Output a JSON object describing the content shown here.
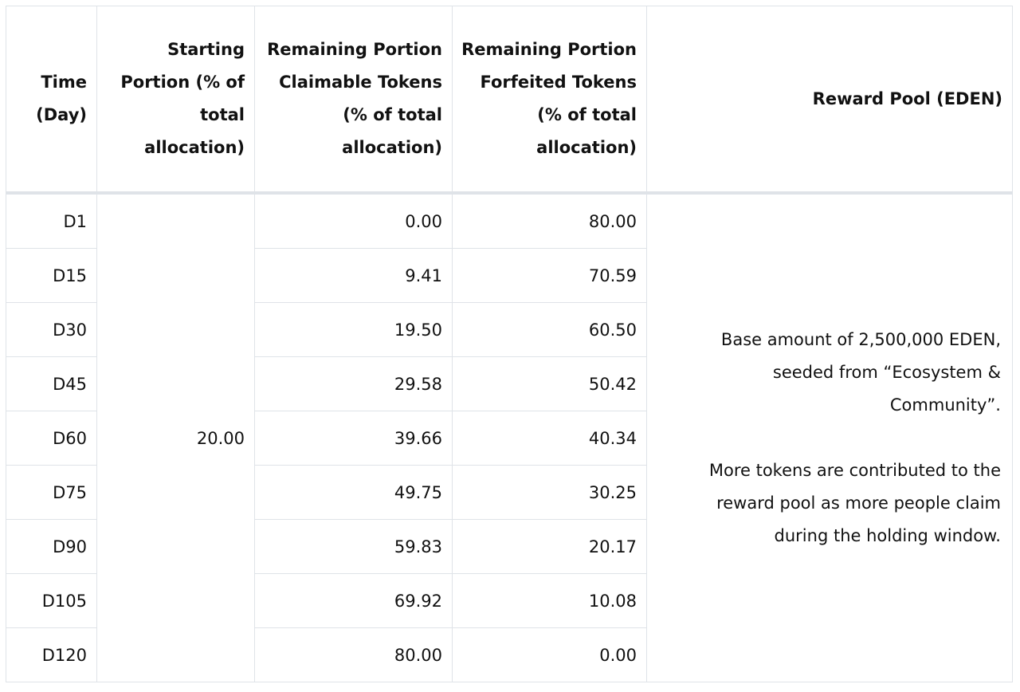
{
  "table": {
    "headers": [
      "Time (Day)",
      "Starting Portion (% of total allocation)",
      "Remaining Portion Claimable Tokens (% of total allocation)",
      "Remaining Portion Forfeited Tokens (% of total allocation)",
      "Reward Pool (EDEN)"
    ],
    "starting_portion": "20.00",
    "rows": [
      {
        "day": "D1",
        "claimable": "0.00",
        "forfeited": "80.00"
      },
      {
        "day": "D15",
        "claimable": "9.41",
        "forfeited": "70.59"
      },
      {
        "day": "D30",
        "claimable": "19.50",
        "forfeited": "60.50"
      },
      {
        "day": "D45",
        "claimable": "29.58",
        "forfeited": "50.42"
      },
      {
        "day": "D60",
        "claimable": "39.66",
        "forfeited": "40.34"
      },
      {
        "day": "D75",
        "claimable": "49.75",
        "forfeited": "30.25"
      },
      {
        "day": "D90",
        "claimable": "59.83",
        "forfeited": "20.17"
      },
      {
        "day": "D105",
        "claimable": "69.92",
        "forfeited": "10.08"
      },
      {
        "day": "D120",
        "claimable": "80.00",
        "forfeited": "0.00"
      }
    ],
    "reward_pool": {
      "paragraph_1": "Base amount of 2,500,000 EDEN, seeded from “Ecosystem & Community”.",
      "paragraph_2": "More tokens are contributed to the reward pool as more people claim during the holding window."
    }
  }
}
